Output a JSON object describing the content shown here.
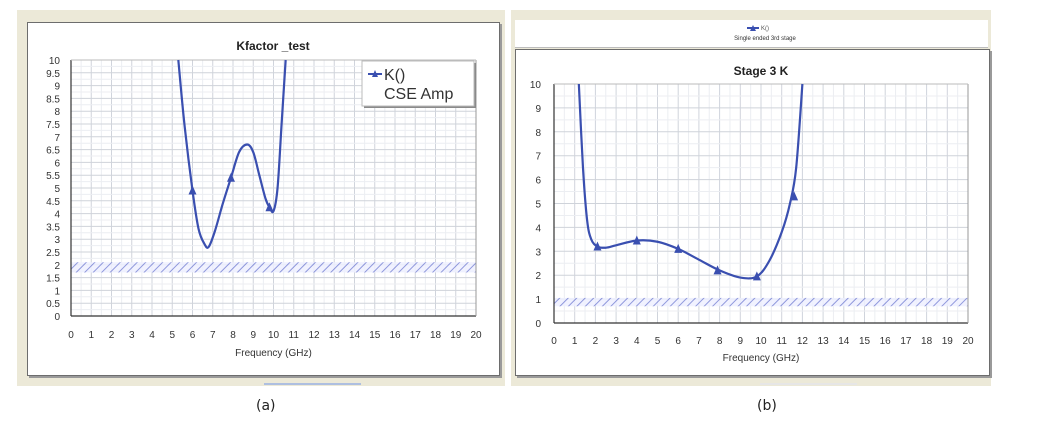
{
  "chart_data": [
    {
      "id": "a",
      "type": "line",
      "title": "Kfactor _test",
      "xlabel": "Frequency (GHz)",
      "ylabel": "",
      "xlim": [
        0,
        20
      ],
      "ylim": [
        0,
        10
      ],
      "xticks": [
        "0",
        "1",
        "2",
        "3",
        "4",
        "5",
        "6",
        "7",
        "8",
        "9",
        "10",
        "11",
        "12",
        "13",
        "14",
        "15",
        "16",
        "17",
        "18",
        "19",
        "20"
      ],
      "yticks": [
        "0",
        "0.5",
        "1",
        "1.5",
        "2",
        "2.5",
        "3",
        "3.5",
        "4",
        "4.5",
        "5",
        "5.5",
        "6",
        "6.5",
        "7",
        "7.5",
        "8",
        "8.5",
        "9",
        "9.5",
        "10"
      ],
      "grid": true,
      "legend": {
        "position": "top-right",
        "entries": [
          "K()",
          "CSE Amp"
        ]
      },
      "series": [
        {
          "name": "K() CSE Amp",
          "color": "#3a4fb0",
          "marker": "triangle",
          "x": [
            5.3,
            5.6,
            6.0,
            6.3,
            6.6,
            6.8,
            7.1,
            7.5,
            7.9,
            8.3,
            8.7,
            9.0,
            9.3,
            9.6,
            9.8,
            10.0,
            10.2,
            10.4,
            10.6
          ],
          "values": [
            10.0,
            7.5,
            4.9,
            3.4,
            2.8,
            2.7,
            3.3,
            4.4,
            5.4,
            6.4,
            6.7,
            6.4,
            5.5,
            4.6,
            4.25,
            4.1,
            5.0,
            7.5,
            10.0
          ],
          "markers_x": [
            6.0,
            7.9,
            9.8
          ],
          "markers_y": [
            4.9,
            5.4,
            4.25
          ]
        }
      ],
      "stability_band": {
        "y_min": 1.7,
        "y_max": 2.1,
        "style": "hatched"
      }
    },
    {
      "id": "b",
      "type": "line",
      "title": "Stage 3 K",
      "xlabel": "Frequency (GHz)",
      "ylabel": "",
      "xlim": [
        0,
        20
      ],
      "ylim": [
        0,
        10
      ],
      "xticks": [
        "0",
        "1",
        "2",
        "3",
        "4",
        "5",
        "6",
        "7",
        "8",
        "9",
        "10",
        "11",
        "12",
        "13",
        "14",
        "15",
        "16",
        "17",
        "18",
        "19",
        "20"
      ],
      "yticks": [
        "0",
        "1",
        "2",
        "3",
        "4",
        "5",
        "6",
        "7",
        "8",
        "9",
        "10"
      ],
      "grid": true,
      "legend": {
        "position": "top-center",
        "entries": [
          "K()",
          "Single ended 3rd stage"
        ]
      },
      "series": [
        {
          "name": "K() Single ended 3rd stage",
          "color": "#3a4fb0",
          "marker": "triangle",
          "x": [
            1.2,
            1.4,
            1.6,
            1.8,
            2.1,
            2.5,
            3.0,
            4.0,
            5.0,
            6.0,
            7.0,
            8.0,
            9.0,
            9.8,
            10.4,
            11.0,
            11.4,
            11.7,
            12.0
          ],
          "values": [
            10.0,
            6.5,
            4.3,
            3.5,
            3.2,
            3.15,
            3.25,
            3.45,
            3.4,
            3.1,
            2.65,
            2.2,
            1.9,
            1.95,
            2.6,
            3.8,
            5.0,
            6.5,
            10.0
          ],
          "markers_x": [
            2.1,
            4.0,
            6.0,
            7.9,
            9.8,
            11.6
          ],
          "markers_y": [
            3.2,
            3.45,
            3.1,
            2.2,
            1.95,
            5.3
          ]
        }
      ],
      "stability_band": {
        "y_min": 0.7,
        "y_max": 1.05,
        "style": "hatched"
      }
    }
  ],
  "captions": {
    "a": "(a)",
    "b": "(b)"
  }
}
